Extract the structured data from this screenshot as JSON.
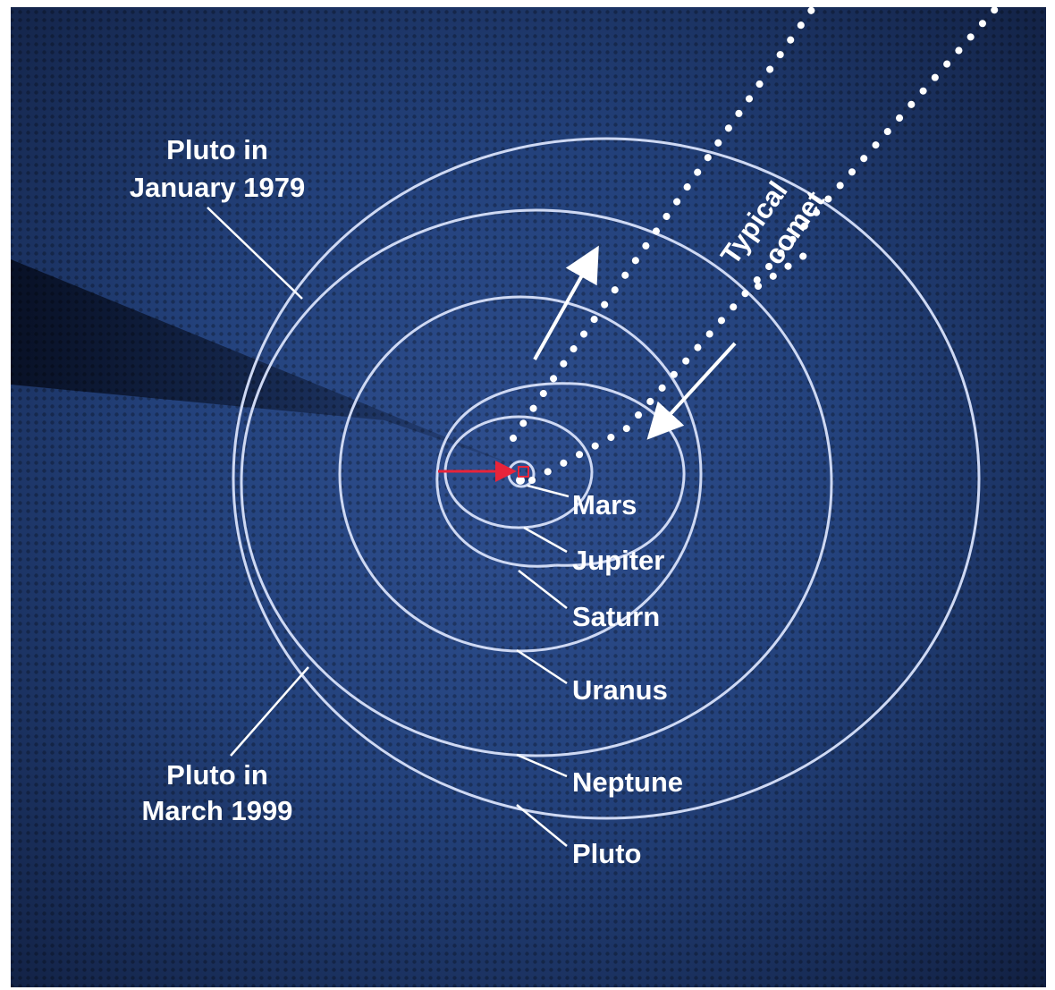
{
  "labels": {
    "pluto_1979_line1": "Pluto in",
    "pluto_1979_line2": "January 1979",
    "pluto_1999_line1": "Pluto in",
    "pluto_1999_line2": "March 1999",
    "comet_line1": "Typical",
    "comet_line2": "comet",
    "planets": {
      "mars": "Mars",
      "jupiter": "Jupiter",
      "saturn": "Saturn",
      "uranus": "Uranus",
      "neptune": "Neptune",
      "pluto": "Pluto"
    }
  },
  "colors": {
    "background": "#1c2f5e",
    "orbit": "#cfd9f3",
    "text": "#ffffff",
    "sun_marker": "#e8243a",
    "frame": "#ffffff"
  }
}
